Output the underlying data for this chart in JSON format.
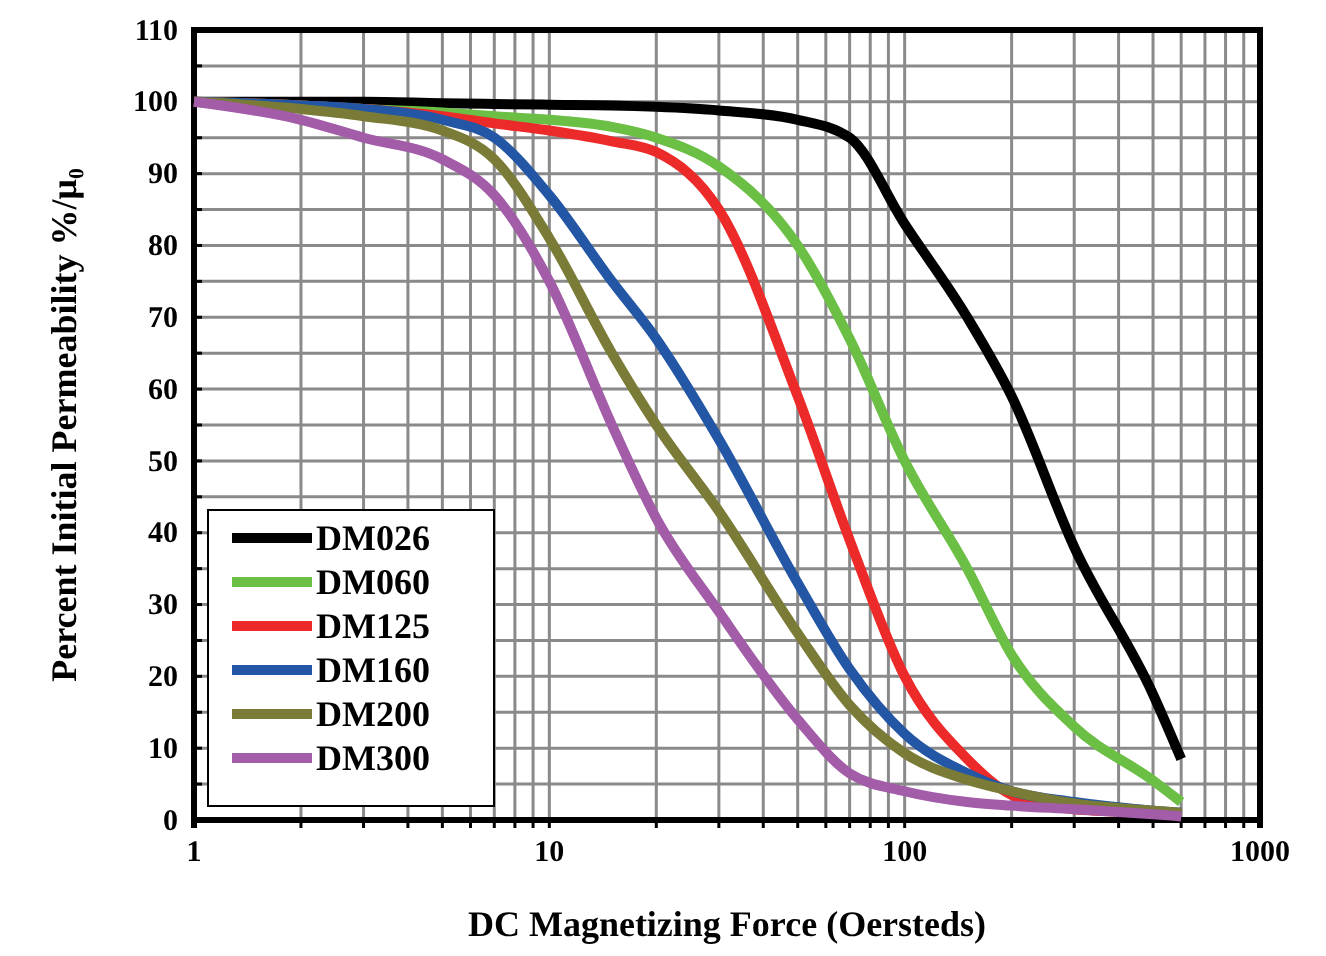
{
  "chart_data": {
    "type": "line",
    "xlabel": "DC Magnetizing Force (Oersteds)",
    "ylabel": "Percent Initial Permeability %/μ₀",
    "log": "x",
    "grid": true,
    "legend": "bottom left",
    "line_style": "solid",
    "marker": "none",
    "xlim": [
      1,
      1000
    ],
    "ylim": [
      0,
      110
    ],
    "xticks": [
      1,
      {
        "value": 2,
        "label": null
      },
      {
        "value": 3,
        "label": null
      },
      {
        "value": 4,
        "label": null
      },
      {
        "value": 5,
        "label": null
      },
      {
        "value": 6,
        "label": null
      },
      {
        "value": 7,
        "label": null
      },
      {
        "value": 8,
        "label": null
      },
      {
        "value": 9,
        "label": null
      },
      10,
      {
        "value": 20,
        "label": null
      },
      {
        "value": 30,
        "label": null
      },
      {
        "value": 40,
        "label": null
      },
      {
        "value": 50,
        "label": null
      },
      {
        "value": 60,
        "label": null
      },
      {
        "value": 70,
        "label": null
      },
      {
        "value": 80,
        "label": null
      },
      {
        "value": 90,
        "label": null
      },
      100,
      {
        "value": 200,
        "label": null
      },
      {
        "value": 300,
        "label": null
      },
      {
        "value": 400,
        "label": null
      },
      {
        "value": 500,
        "label": null
      },
      {
        "value": 600,
        "label": null
      },
      {
        "value": 700,
        "label": null
      },
      {
        "value": 800,
        "label": null
      },
      {
        "value": 900,
        "label": null
      },
      1000
    ],
    "yticks": [
      0,
      {
        "value": 5,
        "label": null
      },
      10,
      {
        "value": 15,
        "label": null
      },
      20,
      {
        "value": 25,
        "label": null
      },
      30,
      {
        "value": 35,
        "label": null
      },
      40,
      {
        "value": 45,
        "label": null
      },
      50,
      {
        "value": 55,
        "label": null
      },
      60,
      {
        "value": 65,
        "label": null
      },
      70,
      {
        "value": 75,
        "label": null
      },
      80,
      {
        "value": 85,
        "label": null
      },
      90,
      {
        "value": 95,
        "label": null
      },
      100,
      {
        "value": 105,
        "label": null
      },
      110
    ],
    "x": [
      1,
      2,
      3,
      5,
      7,
      10,
      15,
      20,
      30,
      50,
      70,
      100,
      150,
      200,
      300,
      500,
      600
    ],
    "series": [
      {
        "name": "DM026",
        "color": "#000000",
        "values": [
          100,
          100,
          100,
          99.8,
          99.7,
          99.6,
          99.5,
          99.3,
          98.8,
          97.5,
          95,
          83,
          70,
          59,
          38,
          17.5,
          8.5
        ]
      },
      {
        "name": "DM060",
        "color": "#6cbf45",
        "values": [
          100,
          99.5,
          99,
          98.5,
          98,
          97.5,
          96.5,
          95,
          91,
          80,
          67,
          50,
          35,
          23,
          13,
          5.5,
          2.5
        ]
      },
      {
        "name": "DM125",
        "color": "#ec2a2a",
        "values": [
          100,
          99.5,
          99,
          98,
          97,
          96,
          94.5,
          93,
          85,
          59,
          39,
          20,
          8.5,
          3.5,
          1.5,
          1,
          0.8
        ]
      },
      {
        "name": "DM160",
        "color": "#2356a4",
        "values": [
          100,
          99.5,
          99,
          97.5,
          95,
          87,
          75,
          67,
          53,
          33,
          21,
          12,
          6.5,
          4,
          2.5,
          1.3,
          1
        ]
      },
      {
        "name": "DM200",
        "color": "#7a7b36",
        "values": [
          100,
          99,
          98,
          96,
          92,
          81,
          65,
          55,
          43,
          26,
          16,
          9.3,
          5.6,
          4,
          2.3,
          1.3,
          1
        ]
      },
      {
        "name": "DM300",
        "color": "#a25ca8",
        "values": [
          100,
          97.5,
          95,
          92,
          87,
          75,
          55,
          42,
          29,
          14,
          6.5,
          4,
          2.5,
          2,
          1.5,
          0.8,
          0.5
        ]
      }
    ]
  }
}
